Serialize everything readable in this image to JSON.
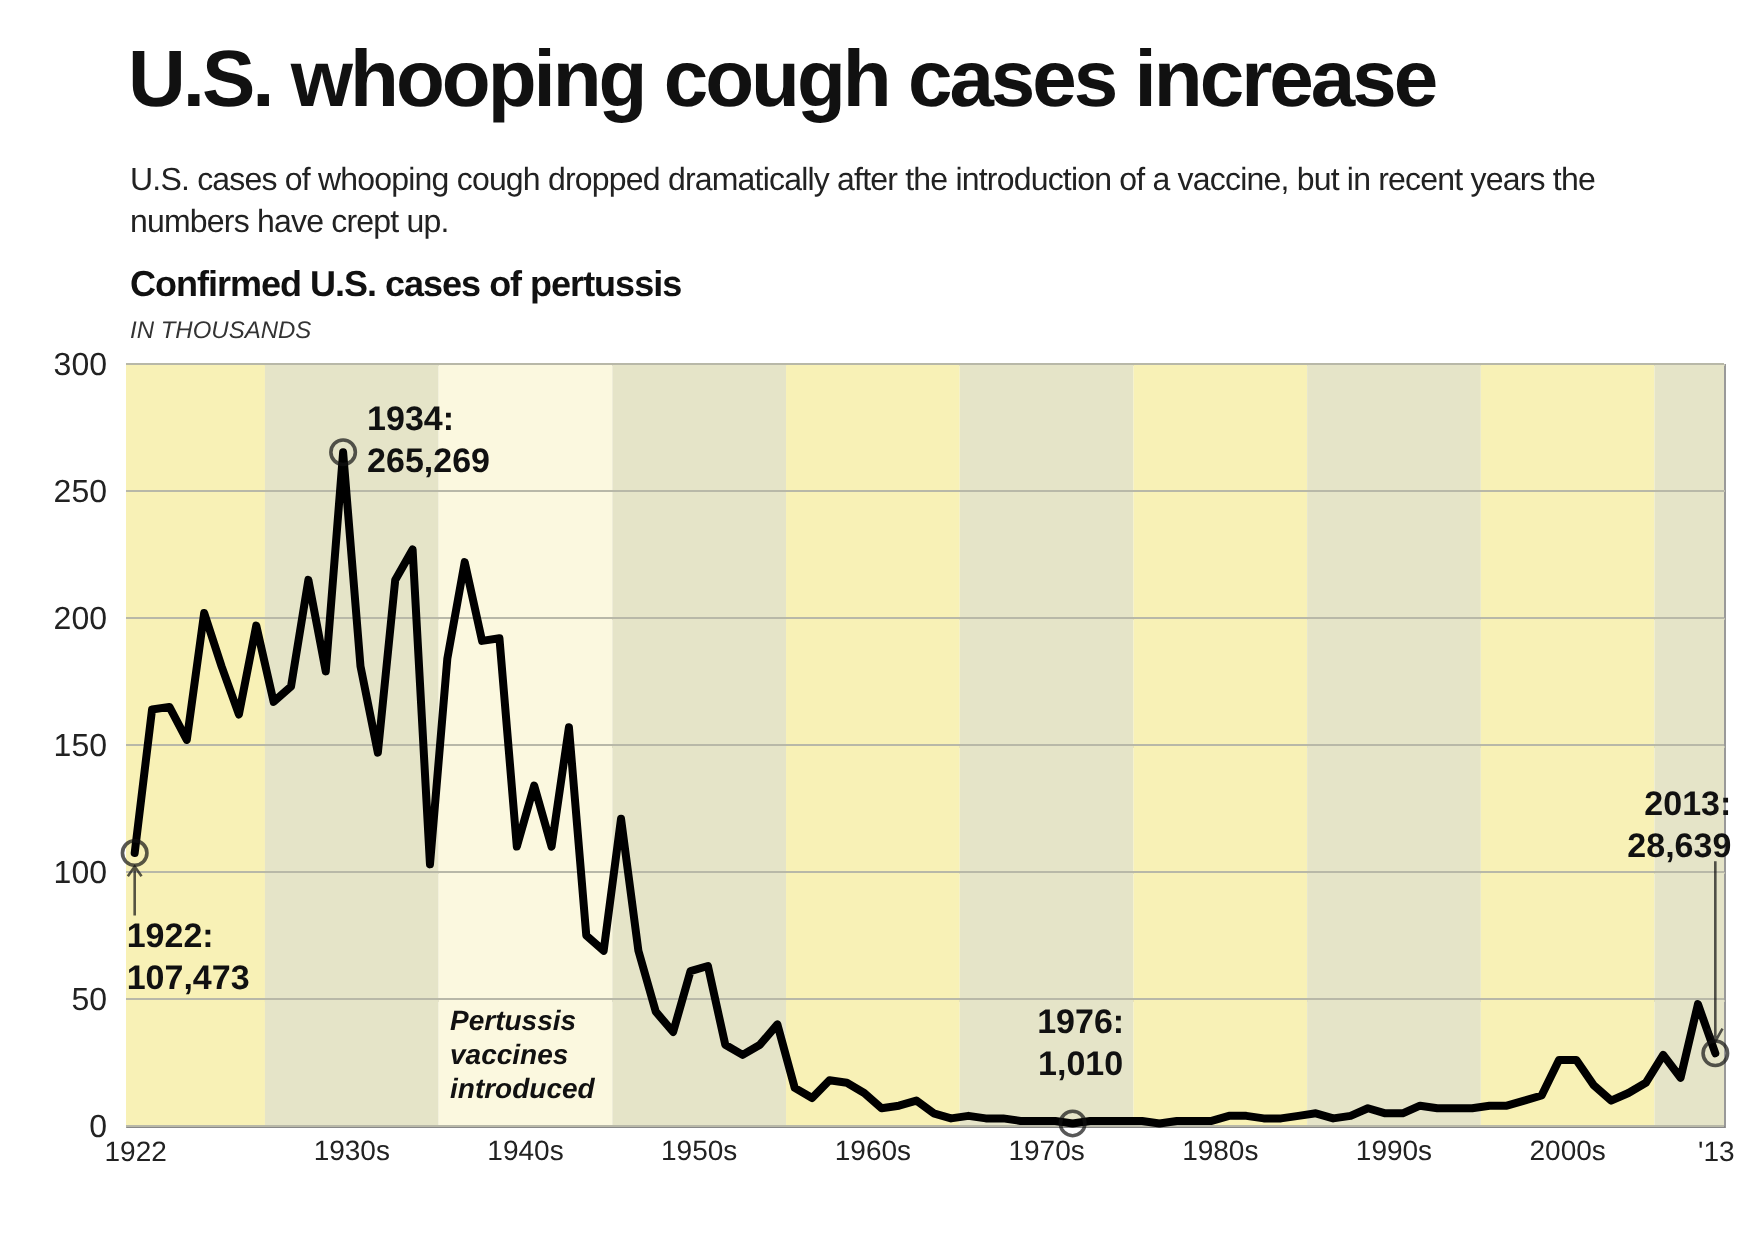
{
  "chart_data": {
    "type": "line",
    "title": "U.S. whooping cough cases increase",
    "subtitle": "U.S. cases of whooping cough dropped dramatically after the introduction of a vaccine, but in recent years the numbers have crept up.",
    "ylabel": "IN THOUSANDS",
    "annotations": [
      "Confirmed U.S. cases of pertussis",
      "Pertussis vaccines introduced",
      {
        "text": "1922: 107,473",
        "x": 1922,
        "y": 107.473
      },
      {
        "text": "1934: 265,269",
        "x": 1934,
        "y": 265.269
      },
      {
        "text": "1976: 1,010",
        "x": 1976,
        "y": 1.01
      },
      {
        "text": "2013: 28,639",
        "x": 2013,
        "y": 28.639
      }
    ],
    "x": [
      1922,
      1923,
      1924,
      1925,
      1926,
      1927,
      1928,
      1929,
      1930,
      1931,
      1932,
      1933,
      1934,
      1935,
      1936,
      1937,
      1938,
      1939,
      1940,
      1941,
      1942,
      1943,
      1944,
      1945,
      1946,
      1947,
      1948,
      1949,
      1950,
      1951,
      1952,
      1953,
      1954,
      1955,
      1956,
      1957,
      1958,
      1959,
      1960,
      1961,
      1962,
      1963,
      1964,
      1965,
      1966,
      1967,
      1968,
      1969,
      1970,
      1971,
      1972,
      1973,
      1974,
      1975,
      1976,
      1977,
      1978,
      1979,
      1980,
      1981,
      1982,
      1983,
      1984,
      1985,
      1986,
      1987,
      1988,
      1989,
      1990,
      1991,
      1992,
      1993,
      1994,
      1995,
      1996,
      1997,
      1998,
      1999,
      2000,
      2001,
      2002,
      2003,
      2004,
      2005,
      2006,
      2007,
      2008,
      2009,
      2010,
      2011,
      2012,
      2013
    ],
    "series": [
      {
        "color": "#000000",
        "values": [
          107.473,
          164,
          165,
          152,
          202,
          181,
          162,
          197,
          167,
          173,
          215,
          179,
          265.269,
          181,
          147,
          215,
          227,
          103,
          184,
          222,
          191,
          192,
          110,
          134,
          110,
          157,
          75,
          69,
          121,
          69,
          45,
          37,
          61,
          63,
          32,
          28,
          32,
          40,
          15,
          11,
          18,
          17,
          13,
          7,
          8,
          10,
          5,
          3,
          4,
          3,
          3,
          2,
          2,
          2,
          1.01,
          2,
          2,
          2,
          2,
          1,
          2,
          2,
          2,
          4,
          4,
          3,
          3,
          4,
          5,
          3,
          4,
          7,
          5,
          5,
          8,
          7,
          7,
          7,
          8,
          8,
          10,
          12,
          26,
          26,
          16,
          10,
          13,
          17,
          28,
          19,
          48,
          28.639
        ]
      }
    ],
    "xlim": [
      1921.5,
      2013.5
    ],
    "xticks": [
      1922,
      {
        "value": 2013,
        "label": "'13"
      }
    ],
    "ylim": [
      0,
      300
    ],
    "yticks": [
      0,
      50,
      100,
      150,
      200,
      250,
      300
    ],
    "grid": "y",
    "bands": [
      {
        "axis": "x",
        "from": 1921.5,
        "to": 1929.5,
        "color": "#f8f1b6"
      },
      {
        "axis": "x",
        "from": 1929.5,
        "to": 1939.5,
        "color": "#e5e4c8",
        "label": "1930s"
      },
      {
        "axis": "x",
        "from": 1939.5,
        "to": 1949.5,
        "color": "#fbf8df",
        "label": "1940s"
      },
      {
        "axis": "x",
        "from": 1949.5,
        "to": 1959.5,
        "color": "#e5e4c8",
        "label": "1950s"
      },
      {
        "axis": "x",
        "from": 1959.5,
        "to": 1969.5,
        "color": "#f8f1b6",
        "label": "1960s"
      },
      {
        "axis": "x",
        "from": 1969.5,
        "to": 1979.5,
        "color": "#e5e4c8",
        "label": "1970s"
      },
      {
        "axis": "x",
        "from": 1979.5,
        "to": 1989.5,
        "color": "#f8f1b6",
        "label": "1980s"
      },
      {
        "axis": "x",
        "from": 1989.5,
        "to": 1999.5,
        "color": "#e5e4c8",
        "label": "1990s"
      },
      {
        "axis": "x",
        "from": 1999.5,
        "to": 2009.5,
        "color": "#f8f1b6",
        "label": "2000s"
      },
      {
        "axis": "x",
        "from": 2009.5,
        "to": 2013.5,
        "color": "#e5e4c8"
      }
    ]
  }
}
